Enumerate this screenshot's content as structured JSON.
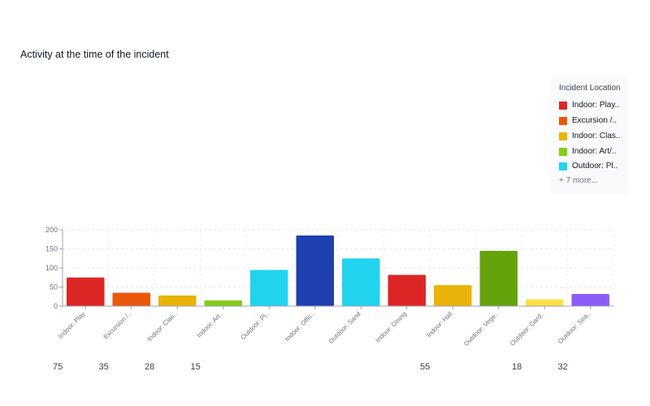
{
  "chart_data": {
    "type": "bar",
    "title": "Activity at the time of the incident",
    "categories": [
      "Indoor: Play",
      "Excursion /..",
      "Indoor: Clas..",
      "Indoor: Art..",
      "Outdoor: Pl..",
      "Indoor: Offic..",
      "Outdoor: Sand",
      "Indoor: Dining",
      "Indoor: Hall",
      "Outdoor: Vege..",
      "Outdoor: Gard..",
      "Outdoor: Sea.."
    ],
    "values": [
      75,
      35,
      28,
      15,
      95,
      185,
      125,
      82,
      55,
      145,
      18,
      32
    ],
    "colors": [
      "#dc2626",
      "#ea580c",
      "#eab308",
      "#84cc16",
      "#22d3ee",
      "#1e40af",
      "#22d3ee",
      "#dc2626",
      "#eab308",
      "#65a30d",
      "#fde047",
      "#8b5cf6"
    ],
    "ylim": [
      0,
      200
    ],
    "yticks": [
      0,
      50,
      100,
      150,
      200
    ],
    "grid": true,
    "value_labels": [
      {
        "index": 0,
        "text": "75"
      },
      {
        "index": 1,
        "text": "35"
      },
      {
        "index": 2,
        "text": "28"
      },
      {
        "index": 3,
        "text": "15"
      },
      {
        "index": 8,
        "text": "55"
      },
      {
        "index": 10,
        "text": "18"
      },
      {
        "index": 11,
        "text": "32"
      }
    ],
    "legend": {
      "title": "Incident Location",
      "placement": "top-right",
      "items": [
        {
          "label": "Indoor: Play..",
          "color": "#dc2626"
        },
        {
          "label": "Excursion /..",
          "color": "#ea580c"
        },
        {
          "label": "Indoor: Clas..",
          "color": "#eab308"
        },
        {
          "label": "Indoor: Art/..",
          "color": "#84cc16"
        },
        {
          "label": "Outdoor: Pl..",
          "color": "#22d3ee"
        }
      ],
      "more": "+ 7 more..."
    }
  }
}
